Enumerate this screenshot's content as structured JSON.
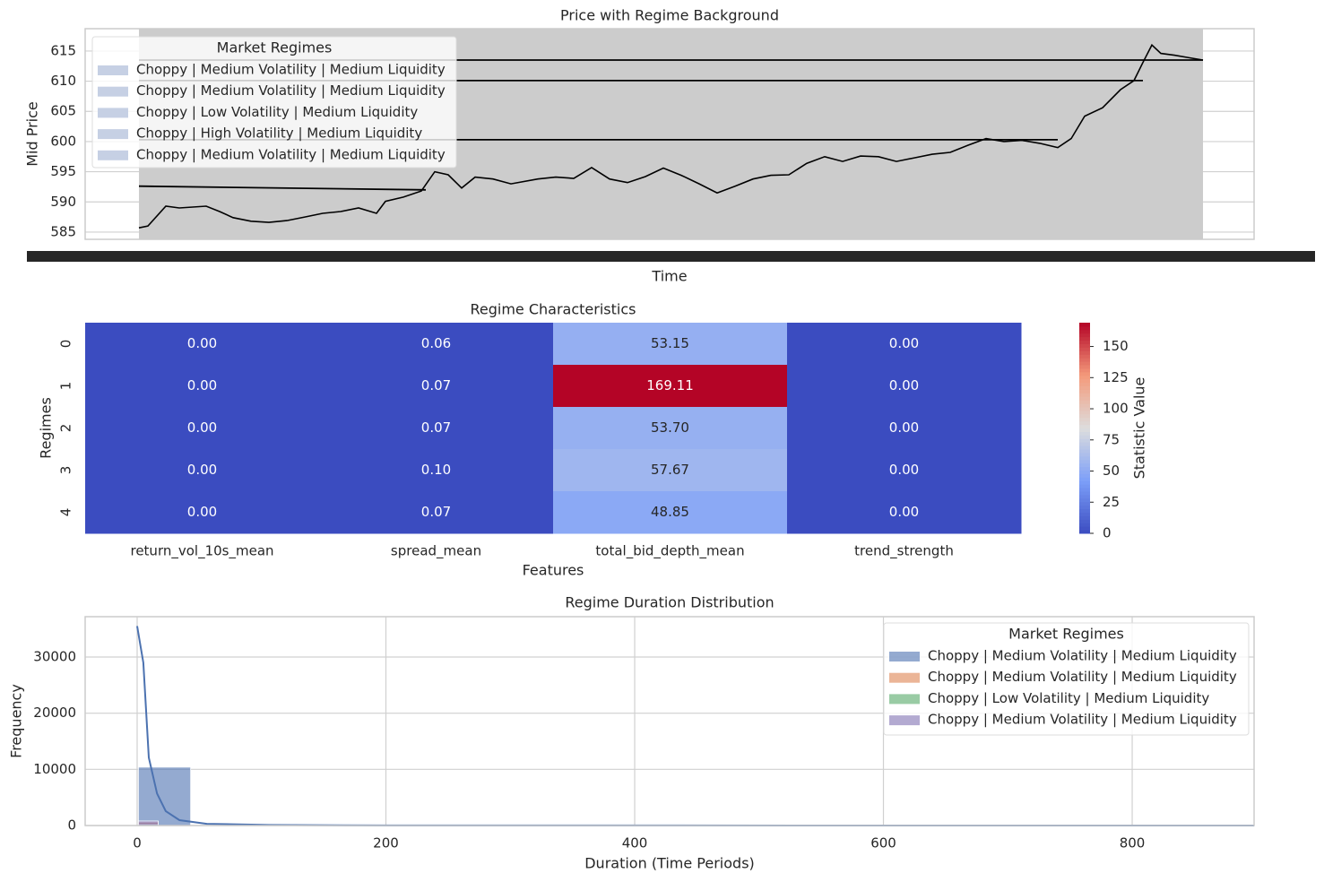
{
  "chart_data": [
    {
      "type": "line",
      "title": "Price with Regime Background",
      "xlabel": "Time",
      "ylabel": "Mid Price",
      "xlim": [
        -60,
        1244
      ],
      "ylim": [
        583.8,
        618.7
      ],
      "yticks": [
        585,
        590,
        595,
        600,
        605,
        610,
        615
      ],
      "grid": true,
      "background_color": "#cccccc",
      "legend": {
        "title": "Market Regimes",
        "loc": "upper left",
        "entries": [
          {
            "name": "Choppy | Medium Volatility | Medium Liquidity",
            "color": "#c6d0e4"
          },
          {
            "name": "Choppy | Medium Volatility | Medium Liquidity",
            "color": "#c6d0e4"
          },
          {
            "name": "Choppy | Low Volatility | Medium Liquidity",
            "color": "#c6d0e4"
          },
          {
            "name": "Choppy | High Volatility | Medium Liquidity",
            "color": "#c6d0e4"
          },
          {
            "name": "Choppy | Medium Volatility | Medium Liquidity",
            "color": "#c6d0e4"
          }
        ]
      },
      "series": [
        {
          "color": "#000000",
          "x": [
            0,
            10,
            30,
            45,
            75,
            90,
            105,
            125,
            145,
            165,
            185,
            205,
            225,
            245,
            265,
            275,
            295,
            315,
            330,
            345,
            360,
            375,
            395,
            415,
            445,
            465,
            485,
            505,
            525,
            545,
            565,
            585,
            605,
            625,
            645,
            665,
            685,
            705,
            725,
            745,
            765,
            785,
            805,
            825,
            845,
            865,
            885,
            905,
            925,
            945,
            965,
            985,
            1005,
            1025,
            1040,
            1055,
            1075,
            1095,
            1110,
            1120,
            1130,
            1140,
            1155,
            1175,
            1187
          ],
          "values": [
            585.7,
            586.0,
            589.3,
            589.0,
            589.3,
            588.4,
            587.4,
            586.8,
            586.6,
            586.9,
            587.5,
            588.1,
            588.4,
            589.0,
            588.1,
            590.1,
            590.8,
            591.8,
            595.0,
            594.5,
            592.3,
            594.1,
            593.8,
            593.0,
            593.8,
            594.1,
            593.9,
            595.7,
            593.8,
            593.2,
            594.2,
            595.6,
            594.4,
            593.0,
            591.5,
            592.6,
            593.8,
            594.4,
            594.5,
            596.4,
            597.5,
            596.7,
            597.6,
            597.5,
            596.7,
            597.3,
            597.9,
            598.2,
            599.4,
            600.5,
            600.0,
            600.2,
            599.7,
            599.0,
            600.5,
            604.2,
            605.6,
            608.6,
            610.1,
            613.1,
            616.0,
            614.6,
            614.3,
            613.8,
            613.5
          ]
        },
        {
          "color": "#000000",
          "x": [
            0,
            1187
          ],
          "values": [
            613.5,
            613.5
          ]
        },
        {
          "color": "#000000",
          "x": [
            0,
            1120
          ],
          "values": [
            610.1,
            610.1
          ]
        },
        {
          "color": "#000000",
          "x": [
            0,
            1025
          ],
          "values": [
            600.3,
            600.3
          ]
        },
        {
          "color": "#000000",
          "x": [
            0,
            320
          ],
          "values": [
            592.6,
            592.0
          ]
        }
      ]
    },
    {
      "type": "heatmap",
      "title": "Regime Characteristics",
      "xlabel": "Features",
      "ylabel": "Regimes",
      "rows": [
        "0",
        "1",
        "2",
        "3",
        "4"
      ],
      "columns": [
        "return_vol_10s_mean",
        "spread_mean",
        "total_bid_depth_mean",
        "trend_strength"
      ],
      "values": [
        [
          0,
          0.06,
          53.15,
          0
        ],
        [
          0,
          0.07,
          169.11,
          0
        ],
        [
          0,
          0.07,
          53.7,
          0
        ],
        [
          0,
          0.1,
          57.67,
          0
        ],
        [
          0,
          0.07,
          48.85,
          0
        ]
      ],
      "value_labels": [
        [
          "0.00",
          "0.06",
          "53.15",
          "0.00"
        ],
        [
          "0.00",
          "0.07",
          "169.11",
          "0.00"
        ],
        [
          "0.00",
          "0.07",
          "53.70",
          "0.00"
        ],
        [
          "0.00",
          "0.10",
          "57.67",
          "0.00"
        ],
        [
          "0.00",
          "0.07",
          "48.85",
          "0.00"
        ]
      ],
      "colorbar": {
        "label": "Statistic Value",
        "cmap": "coolwarm",
        "lim": [
          0,
          169.11
        ],
        "ticks": [
          0,
          25,
          50,
          75,
          100,
          125,
          150
        ]
      }
    },
    {
      "type": "histogram",
      "title": "Regime Duration Distribution",
      "xlabel": "Duration (Time Periods)",
      "ylabel": "Frequency",
      "xlim": [
        -41.8,
        898
      ],
      "ylim": [
        0,
        37180
      ],
      "xticks": [
        0,
        200,
        400,
        600,
        800
      ],
      "yticks": [
        0,
        10000,
        20000,
        30000
      ],
      "grid": true,
      "legend": {
        "title": "Market Regimes",
        "loc": "upper right"
      },
      "series": [
        {
          "name": "Choppy | Medium Volatility | Medium Liquidity",
          "color": "#4c72b0",
          "bins": [
            1,
            43
          ],
          "counts": [
            10400
          ]
        },
        {
          "name": "Choppy | Medium Volatility | Medium Liquidity",
          "color": "#dd8452",
          "bins": [
            1,
            17
          ],
          "counts": [
            600
          ]
        },
        {
          "name": "Choppy | Low Volatility | Medium Liquidity",
          "color": "#55a868",
          "bins": [
            1,
            17
          ],
          "counts": [
            200
          ]
        },
        {
          "name": "Choppy | Medium Volatility | Medium Liquidity",
          "color": "#8172b3",
          "bins": [
            1,
            17
          ],
          "counts": [
            800
          ]
        }
      ],
      "kde": {
        "color": "#4c72b0",
        "x": [
          0,
          5,
          9.4,
          16,
          23,
          34,
          56,
          106,
          200,
          898
        ],
        "values": [
          35500,
          29000,
          12100,
          5700,
          2550,
          950,
          300,
          100,
          20,
          0
        ]
      }
    }
  ]
}
